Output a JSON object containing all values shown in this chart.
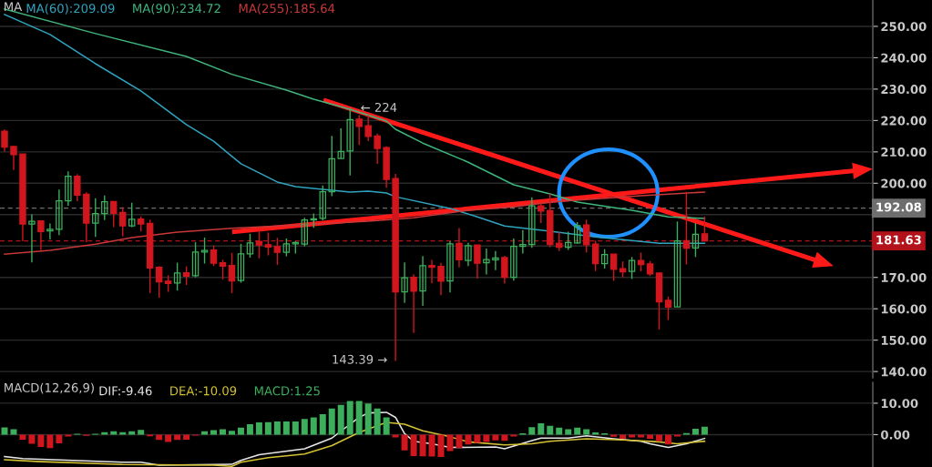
{
  "chart_data": [
    {
      "type": "candlestick",
      "title": "MA",
      "legend": "top left",
      "grid": "y",
      "tick_labels": "y",
      "categories": [
        null,
        null,
        null,
        null,
        null,
        null,
        null,
        null,
        null,
        null,
        null,
        null,
        null,
        null,
        null,
        null,
        null,
        null,
        null,
        null,
        null,
        null,
        null,
        null,
        null,
        null,
        null,
        null,
        null,
        null,
        null,
        null,
        null,
        null,
        null,
        null,
        null,
        null,
        null,
        null,
        null,
        null,
        null,
        null,
        null,
        null,
        null,
        null,
        null,
        null,
        null,
        null,
        null,
        null,
        null,
        null,
        null,
        null,
        null,
        null,
        null,
        null,
        null,
        null,
        null,
        null,
        null,
        null,
        null,
        null,
        null,
        null,
        null,
        null,
        null,
        null,
        null,
        null,
        null,
        null,
        null,
        null,
        null,
        null,
        null,
        null,
        null,
        null,
        null,
        null,
        null,
        null,
        null,
        null,
        null,
        null
      ],
      "ohlc": [
        [
          216.6,
          217.1,
          210.1,
          211.5
        ],
        [
          211.7,
          211.9,
          204.2,
          209.1
        ],
        [
          209.3,
          209.3,
          181.5,
          187.0
        ],
        [
          187.0,
          190.1,
          174.8,
          187.9
        ],
        [
          188.0,
          188.2,
          178.7,
          184.6
        ],
        [
          184.8,
          187.2,
          182.1,
          185.3
        ],
        [
          185.3,
          198.0,
          183.5,
          194.4
        ],
        [
          194.4,
          203.8,
          192.8,
          202.2
        ],
        [
          202.2,
          202.9,
          194.3,
          196.2
        ],
        [
          196.5,
          197.1,
          181.2,
          187.3
        ],
        [
          187.3,
          195.2,
          182.9,
          190.3
        ],
        [
          190.3,
          196.1,
          188.3,
          194.1
        ],
        [
          194.2,
          194.2,
          186.0,
          190.4
        ],
        [
          190.7,
          192.4,
          183.1,
          186.4
        ],
        [
          186.4,
          193.8,
          186.0,
          188.5
        ],
        [
          188.6,
          189.4,
          184.6,
          187.0
        ],
        [
          187.2,
          188.4,
          165.0,
          173.0
        ],
        [
          173.2,
          173.6,
          163.5,
          168.6
        ],
        [
          168.8,
          170.7,
          165.4,
          168.1
        ],
        [
          168.2,
          174.7,
          165.8,
          171.4
        ],
        [
          171.5,
          173.5,
          167.6,
          170.4
        ],
        [
          170.5,
          181.2,
          170.0,
          178.1
        ],
        [
          178.1,
          182.7,
          174.4,
          178.6
        ],
        [
          178.7,
          180.2,
          173.6,
          174.5
        ],
        [
          174.7,
          175.6,
          169.3,
          173.6
        ],
        [
          173.8,
          177.8,
          165.0,
          168.9
        ],
        [
          169.0,
          180.7,
          168.3,
          177.5
        ],
        [
          177.5,
          183.9,
          176.3,
          181.0
        ],
        [
          181.5,
          185.0,
          176.1,
          180.3
        ],
        [
          180.4,
          184.3,
          177.0,
          179.7
        ],
        [
          179.8,
          182.6,
          174.0,
          178.0
        ],
        [
          178.0,
          182.4,
          176.7,
          180.7
        ],
        [
          180.7,
          181.5,
          177.6,
          181.1
        ],
        [
          180.6,
          189.0,
          179.9,
          188.3
        ],
        [
          188.3,
          190.4,
          185.8,
          188.7
        ],
        [
          188.8,
          199.3,
          188.2,
          197.3
        ],
        [
          197.3,
          215.1,
          195.9,
          207.8
        ],
        [
          207.9,
          217.5,
          207.9,
          210.1
        ],
        [
          210.3,
          224,
          202.5,
          220.3
        ],
        [
          220.4,
          221.7,
          212.2,
          218.1
        ],
        [
          218.3,
          221.6,
          213.4,
          214.9
        ],
        [
          215.1,
          215.8,
          206.2,
          211.1
        ],
        [
          211.4,
          211.8,
          198.6,
          201.2
        ],
        [
          201.5,
          203.0,
          143.39,
          165.4
        ],
        [
          165.4,
          174.8,
          161.9,
          169.9
        ],
        [
          170.0,
          171.0,
          152.3,
          165.6
        ],
        [
          165.7,
          176.8,
          160.9,
          173.7
        ],
        [
          173.8,
          175.6,
          168.1,
          173.2
        ],
        [
          173.5,
          174.6,
          164.3,
          168.8
        ],
        [
          168.9,
          181.5,
          165.2,
          180.7
        ],
        [
          180.8,
          185.7,
          173.2,
          175.6
        ],
        [
          175.4,
          181.0,
          173.6,
          180.1
        ],
        [
          180.3,
          180.3,
          169.6,
          174.5
        ],
        [
          174.7,
          179.2,
          170.9,
          175.7
        ],
        [
          175.6,
          178.4,
          172.3,
          176.2
        ],
        [
          176.3,
          176.9,
          168.0,
          170.0
        ],
        [
          170.0,
          182.4,
          169.0,
          179.9
        ],
        [
          179.9,
          185.1,
          177.6,
          180.5
        ],
        [
          180.5,
          195.5,
          179.4,
          192.8
        ],
        [
          192.8,
          193.6,
          187.3,
          191.1
        ],
        [
          191.3,
          196.7,
          179.6,
          180.5
        ],
        [
          180.9,
          184.4,
          178.4,
          179.6
        ],
        [
          179.6,
          184.6,
          178.8,
          181.1
        ],
        [
          181.0,
          187.6,
          180.7,
          186.5
        ],
        [
          186.7,
          188.4,
          177.9,
          180.4
        ],
        [
          180.6,
          181.7,
          172.0,
          174.4
        ],
        [
          174.4,
          179.0,
          172.8,
          177.3
        ],
        [
          177.4,
          177.4,
          168.9,
          172.6
        ],
        [
          172.8,
          175.1,
          170.0,
          171.8
        ],
        [
          171.9,
          176.5,
          169.5,
          175.4
        ],
        [
          175.4,
          177.9,
          171.9,
          174.1
        ],
        [
          174.3,
          175.2,
          170.5,
          171.1
        ],
        [
          171.4,
          171.4,
          153.4,
          162.2
        ],
        [
          162.7,
          163.9,
          156.4,
          160.5
        ],
        [
          160.6,
          187.8,
          160.6,
          181.6
        ],
        [
          181.7,
          197.3,
          174.1,
          179.3
        ],
        [
          179.4,
          187.3,
          176.5,
          183.7
        ],
        [
          183.9,
          189.4,
          181.5,
          181.63
        ],
        null,
        null,
        null,
        null,
        null,
        null,
        null,
        null,
        null,
        null,
        null,
        null,
        null,
        null,
        null,
        null,
        null,
        null
      ],
      "colors": [
        "#d2161e",
        "#d2161e",
        "#d2161e",
        "#3cae5c",
        "#d2161e",
        "#3cae5c",
        "#3cae5c",
        "#3cae5c",
        "#d2161e",
        "#d2161e",
        "#3cae5c",
        "#3cae5c",
        "#d2161e",
        "#d2161e",
        "#3cae5c",
        "#d2161e",
        "#d2161e",
        "#d2161e",
        "#d2161e",
        "#3cae5c",
        "#d2161e",
        "#3cae5c",
        "#3cae5c",
        "#d2161e",
        "#d2161e",
        "#d2161e",
        "#3cae5c",
        "#3cae5c",
        "#d2161e",
        "#d2161e",
        "#d2161e",
        "#3cae5c",
        "#3cae5c",
        "#3cae5c",
        "#3cae5c",
        "#3cae5c",
        "#3cae5c",
        "#3cae5c",
        "#3cae5c",
        "#d2161e",
        "#d2161e",
        "#d2161e",
        "#d2161e",
        "#d2161e",
        "#3cae5c",
        "#d2161e",
        "#3cae5c",
        "#d2161e",
        "#d2161e",
        "#3cae5c",
        "#d2161e",
        "#3cae5c",
        "#d2161e",
        "#3cae5c",
        "#3cae5c",
        "#d2161e",
        "#3cae5c",
        "#3cae5c",
        "#3cae5c",
        "#d2161e",
        "#d2161e",
        "#d2161e",
        "#3cae5c",
        "#3cae5c",
        "#d2161e",
        "#d2161e",
        "#3cae5c",
        "#d2161e",
        "#d2161e",
        "#3cae5c",
        "#d2161e",
        "#d2161e",
        "#d2161e",
        "#d2161e",
        "#3cae5c",
        "#d2161e",
        "#3cae5c",
        "#d2161e",
        null,
        null,
        null,
        null,
        null,
        null,
        null,
        null,
        null,
        null,
        null,
        null,
        null,
        null,
        null,
        null,
        null,
        null
      ],
      "series": [
        {
          "type": "line",
          "name": "MA(60):209.09",
          "color": "#2fa4c0",
          "values": [
            253.8,
            null,
            null,
            null,
            null,
            247.4,
            null,
            null,
            null,
            null,
            238.1,
            null,
            null,
            null,
            null,
            229.4,
            null,
            null,
            null,
            null,
            218.7,
            null,
            null,
            213.4,
            null,
            null,
            206.2,
            null,
            null,
            null,
            200.4,
            null,
            198.9,
            null,
            null,
            null,
            null,
            null,
            197.2,
            null,
            197.5,
            null,
            196.9,
            195.7,
            null,
            null,
            null,
            null,
            null,
            192.0,
            null,
            null,
            189.3,
            null,
            null,
            186.4,
            null,
            null,
            null,
            null,
            184.7,
            null,
            null,
            null,
            null,
            182.9,
            null,
            null,
            null,
            null,
            null,
            null,
            180.9,
            null,
            null,
            null,
            null,
            180.9,
            null,
            null,
            null,
            null,
            null,
            null,
            null,
            null,
            null,
            null,
            null,
            null,
            null,
            null,
            null,
            null,
            null,
            null
          ]
        },
        {
          "type": "line",
          "name": "MA(90):234.72",
          "color": "#3fb47c",
          "values": [
            255.5,
            null,
            null,
            null,
            null,
            null,
            null,
            null,
            null,
            null,
            247.7,
            null,
            null,
            null,
            null,
            null,
            null,
            null,
            null,
            null,
            240.4,
            null,
            null,
            null,
            null,
            234.72,
            null,
            null,
            null,
            null,
            null,
            229.7,
            null,
            null,
            226.8,
            null,
            null,
            null,
            223.6,
            null,
            null,
            null,
            219.8,
            217.2,
            null,
            null,
            212.8,
            null,
            null,
            null,
            null,
            206.7,
            null,
            null,
            null,
            null,
            199.5,
            null,
            null,
            null,
            196.6,
            null,
            null,
            194.0,
            null,
            null,
            null,
            null,
            null,
            191.4,
            null,
            null,
            null,
            189.3,
            null,
            null,
            null,
            188.8,
            null,
            null,
            null,
            null,
            null,
            null,
            null,
            null,
            null,
            null,
            null,
            null,
            null,
            null,
            null,
            null,
            null,
            null
          ]
        },
        {
          "type": "line",
          "name": "MA(255):185.64",
          "color": "#c83838",
          "values": [
            177.4,
            null,
            null,
            null,
            null,
            178.6,
            null,
            null,
            null,
            null,
            180.6,
            null,
            null,
            null,
            182.7,
            null,
            null,
            null,
            null,
            184.4,
            null,
            null,
            null,
            null,
            null,
            185.64,
            null,
            null,
            null,
            null,
            null,
            null,
            186.7,
            null,
            null,
            null,
            null,
            null,
            null,
            null,
            187.9,
            null,
            null,
            null,
            null,
            189.0,
            null,
            null,
            null,
            null,
            null,
            191.4,
            null,
            null,
            null,
            null,
            192.5,
            null,
            null,
            null,
            194.0,
            null,
            null,
            null,
            null,
            null,
            null,
            null,
            null,
            null,
            196.0,
            null,
            null,
            null,
            null,
            null,
            null,
            197.2,
            null,
            null,
            null,
            null,
            null,
            null,
            null,
            null,
            null,
            null,
            null,
            null,
            null,
            null,
            null,
            null,
            null,
            null
          ]
        }
      ],
      "ylim": [
        138,
        258.4
      ],
      "yticks": [
        {
          "value": 140,
          "label": "140.00"
        },
        {
          "value": 150,
          "label": "150.00"
        },
        {
          "value": 160,
          "label": "160.00"
        },
        {
          "value": 170,
          "label": "170.00"
        },
        {
          "value": 180,
          "label": null
        },
        {
          "value": 190,
          "label": null
        },
        {
          "value": 200,
          "label": "200.00"
        },
        {
          "value": 210,
          "label": "210.00"
        },
        {
          "value": 220,
          "label": "220.00"
        },
        {
          "value": 230,
          "label": "230.00"
        },
        {
          "value": 240,
          "label": "240.00"
        },
        {
          "value": 250,
          "label": "250.00"
        }
      ],
      "ref_lines": [
        {
          "axis": "y",
          "value": 192.08,
          "label": "192.08",
          "color": "#6e6e6e",
          "line_style": "dashed"
        },
        {
          "axis": "y",
          "value": 181.63,
          "label": "181.63",
          "color": "#b3121a",
          "line_style": "dashed"
        }
      ],
      "annotations": [
        "← 224",
        "143.39 →"
      ]
    },
    {
      "type": "bar",
      "title": "MACD(12,26,9)",
      "legend": "top left",
      "grid": "y",
      "tick_labels": "y",
      "categories": [
        null,
        null,
        null,
        null,
        null,
        null,
        null,
        null,
        null,
        null,
        null,
        null,
        null,
        null,
        null,
        null,
        null,
        null,
        null,
        null,
        null,
        null,
        null,
        null,
        null,
        null,
        null,
        null,
        null,
        null,
        null,
        null,
        null,
        null,
        null,
        null,
        null,
        null,
        null,
        null,
        null,
        null,
        null,
        null,
        null,
        null,
        null,
        null,
        null,
        null,
        null,
        null,
        null,
        null,
        null,
        null,
        null,
        null,
        null,
        null,
        null,
        null,
        null,
        null,
        null,
        null,
        null,
        null,
        null,
        null,
        null,
        null,
        null,
        null,
        null,
        null,
        null,
        null,
        null,
        null,
        null,
        null,
        null,
        null,
        null,
        null,
        null,
        null,
        null,
        null,
        null,
        null,
        null,
        null,
        null,
        null
      ],
      "series": [
        {
          "type": "line",
          "name": "DIF:-9.46",
          "color": "#e6e6e6",
          "values": [
            -7.0,
            null,
            -7.6,
            null,
            null,
            null,
            null,
            null,
            null,
            null,
            null,
            null,
            null,
            -8.8,
            null,
            -8.8,
            null,
            -9.7,
            null,
            null,
            null,
            null,
            null,
            null,
            null,
            -9.46,
            -8.2,
            null,
            -6.4,
            null,
            null,
            null,
            null,
            -4.5,
            null,
            null,
            -1.1,
            null,
            null,
            5.5,
            6.9,
            null,
            7.1,
            5.5,
            0.3,
            -2.1,
            null,
            -2.9,
            null,
            -4.1,
            null,
            null,
            null,
            null,
            -3.9,
            -4.5,
            null,
            null,
            -1.9,
            -1.1,
            null,
            null,
            -1.1,
            null,
            -0.4,
            null,
            null,
            -1.3,
            null,
            null,
            -2.1,
            -2.9,
            null,
            -4.1,
            null,
            -2.9,
            null,
            -1.2,
            null,
            null,
            null,
            null,
            null,
            null,
            null,
            null,
            null,
            null,
            null,
            null,
            null,
            null,
            null,
            null,
            null,
            null
          ]
        },
        {
          "type": "line",
          "name": "DEA:-10.09",
          "color": "#d4c234",
          "values": [
            -8.0,
            null,
            null,
            null,
            -8.6,
            null,
            null,
            null,
            null,
            null,
            null,
            null,
            null,
            -9.5,
            null,
            null,
            null,
            null,
            null,
            null,
            null,
            null,
            null,
            -9.7,
            null,
            -10.09,
            -8.8,
            null,
            null,
            -7.3,
            null,
            null,
            null,
            -6.2,
            null,
            null,
            -3.5,
            null,
            null,
            0.7,
            null,
            null,
            3.9,
            null,
            3.3,
            null,
            1.2,
            null,
            null,
            -0.7,
            null,
            -2.3,
            null,
            null,
            null,
            -3.3,
            null,
            null,
            -2.9,
            null,
            -2.1,
            null,
            null,
            null,
            -1.3,
            null,
            null,
            null,
            -1.7,
            null,
            null,
            null,
            -2.3,
            null,
            -2.9,
            null,
            null,
            -2.1,
            null,
            null,
            null,
            null,
            null,
            null,
            null,
            null,
            null,
            null,
            null,
            null,
            null,
            null,
            null,
            null,
            null,
            null
          ]
        },
        {
          "type": "bar",
          "name": "MACD:1.25",
          "color": "#3cae5c",
          "values": [
            2.3,
            1.7,
            -1.6,
            -2.9,
            -3.9,
            -4.3,
            -2.8,
            -0.6,
            0.3,
            -0.4,
            0.3,
            0.8,
            1.1,
            0.8,
            1.1,
            1.5,
            -0.5,
            -1.7,
            -2.3,
            -1.7,
            -1.6,
            -0.3,
            1.1,
            1.4,
            1.7,
            1.25,
            2.2,
            3.3,
            3.9,
            4.0,
            4.2,
            4.2,
            4.2,
            5.0,
            5.5,
            6.5,
            8.3,
            9.5,
            10.7,
            10.7,
            9.9,
            8.3,
            5.5,
            -0.9,
            -5.0,
            -6.8,
            -6.9,
            -7.0,
            -7.1,
            -5.2,
            -4.3,
            -3.1,
            -2.6,
            -2.3,
            -1.8,
            -2.0,
            -0.6,
            0.4,
            2.4,
            3.6,
            2.8,
            2.2,
            1.7,
            2.2,
            1.7,
            0.7,
            0.4,
            -0.7,
            -1.3,
            -0.9,
            -0.9,
            -1.3,
            -2.1,
            -3.1,
            -0.6,
            0.5,
            1.9,
            2.5,
            null,
            null,
            null,
            null,
            null,
            null,
            null,
            null,
            null,
            null,
            null,
            null,
            null,
            null,
            null,
            null,
            null,
            null
          ],
          "colors": [
            "#3cae5c",
            "#3cae5c",
            "#d2161e",
            "#d2161e",
            "#d2161e",
            "#d2161e",
            "#d2161e",
            "#d2161e",
            "#3cae5c",
            "#d2161e",
            "#3cae5c",
            "#3cae5c",
            "#3cae5c",
            "#3cae5c",
            "#3cae5c",
            "#3cae5c",
            "#d2161e",
            "#d2161e",
            "#d2161e",
            "#d2161e",
            "#d2161e",
            "#d2161e",
            "#3cae5c",
            "#3cae5c",
            "#3cae5c",
            "#3cae5c",
            "#3cae5c",
            "#3cae5c",
            "#3cae5c",
            "#3cae5c",
            "#3cae5c",
            "#3cae5c",
            "#3cae5c",
            "#3cae5c",
            "#3cae5c",
            "#3cae5c",
            "#3cae5c",
            "#3cae5c",
            "#3cae5c",
            "#3cae5c",
            "#3cae5c",
            "#3cae5c",
            "#3cae5c",
            "#d2161e",
            "#d2161e",
            "#d2161e",
            "#d2161e",
            "#d2161e",
            "#d2161e",
            "#d2161e",
            "#d2161e",
            "#d2161e",
            "#d2161e",
            "#d2161e",
            "#d2161e",
            "#d2161e",
            "#d2161e",
            "#3cae5c",
            "#3cae5c",
            "#3cae5c",
            "#3cae5c",
            "#3cae5c",
            "#3cae5c",
            "#3cae5c",
            "#3cae5c",
            "#3cae5c",
            "#3cae5c",
            "#d2161e",
            "#d2161e",
            "#d2161e",
            "#d2161e",
            "#d2161e",
            "#d2161e",
            "#d2161e",
            "#d2161e",
            "#3cae5c",
            "#3cae5c",
            "#3cae5c",
            null,
            null,
            null,
            null,
            null,
            null,
            null,
            null,
            null,
            null,
            null,
            null,
            null,
            null,
            null,
            null,
            null,
            null
          ]
        }
      ],
      "ylim": [
        -10.3,
        16.6
      ],
      "yticks": [
        {
          "value": 0,
          "label": "0.00"
        },
        {
          "value": 10,
          "label": "10.00"
        }
      ]
    }
  ]
}
